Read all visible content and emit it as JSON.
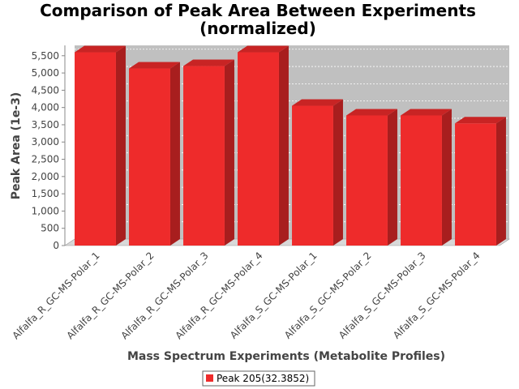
{
  "chart_data": {
    "type": "bar",
    "title_line1": "Comparison of Peak Area Between Experiments",
    "title_line2": "(normalized)",
    "xlabel": "Mass Spectrum Experiments (Metabolite Profiles)",
    "ylabel": "Peak Area (1e-3)",
    "categories": [
      "Alfalfa_R_GC-MS-Polar_1",
      "Alfalfa_R_GC-MS-Polar_2",
      "Alfalfa_R_GC-MS-Polar_3",
      "Alfalfa_R_GC-MS-Polar_4",
      "Alfalfa_S_GC-MS-Polar_1",
      "Alfalfa_S_GC-MS-Polar_2",
      "Alfalfa_S_GC-MS-Polar_3",
      "Alfalfa_S_GC-MS-Polar_4"
    ],
    "series": [
      {
        "name": "Peak 205(32.3852)",
        "color": "#ee2b2b",
        "values": [
          5600,
          5130,
          5200,
          5600,
          4050,
          3770,
          3770,
          3540
        ]
      }
    ],
    "yticks": [
      "0",
      "500",
      "1,000",
      "1,500",
      "2,000",
      "2,500",
      "3,000",
      "3,500",
      "4,000",
      "4,500",
      "5,000",
      "5,500"
    ],
    "ylim": [
      0,
      5800
    ],
    "grid": true,
    "legend_position": "bottom-center",
    "colors": {
      "plot_background": "#c0c0c0",
      "bar": "#ee2b2b"
    }
  }
}
